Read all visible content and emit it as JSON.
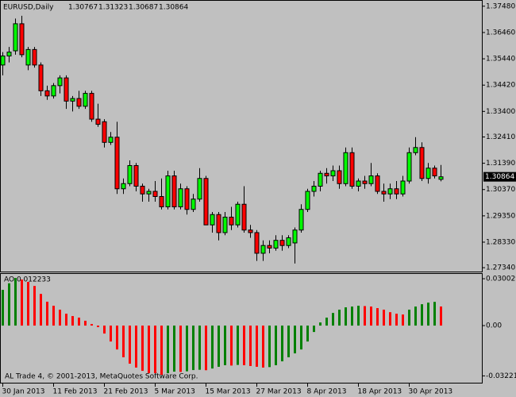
{
  "chart_data": [
    {
      "type": "candlestick",
      "title": "EURUSD,Daily",
      "categories": [
        "30 Jan 2013",
        null,
        null,
        null,
        null,
        null,
        null,
        null,
        "11 Feb 2013",
        null,
        null,
        null,
        null,
        null,
        null,
        null,
        "21 Feb 2013",
        null,
        null,
        null,
        null,
        null,
        null,
        null,
        "5 Mar 2013",
        null,
        null,
        null,
        null,
        null,
        null,
        null,
        "15 Mar 2013",
        null,
        null,
        null,
        null,
        null,
        null,
        null,
        "27 Mar 2013",
        null,
        null,
        null,
        null,
        null,
        null,
        null,
        "8 Apr 2013",
        null,
        null,
        null,
        null,
        null,
        null,
        null,
        "18 Apr 2013",
        null,
        null,
        null,
        null,
        null,
        null,
        null,
        "30 Apr 2013",
        null,
        null,
        null,
        null,
        null
      ],
      "open": [
        1.352,
        1.3555,
        1.3575,
        1.368,
        1.352,
        1.358,
        1.352,
        1.342,
        1.34,
        1.344,
        1.347,
        1.338,
        1.339,
        1.336,
        1.341,
        1.331,
        1.33,
        1.322,
        1.324,
        1.304,
        1.306,
        1.313,
        1.305,
        1.302,
        1.303,
        1.301,
        1.297,
        1.309,
        1.297,
        1.304,
        1.296,
        1.3,
        1.308,
        1.29,
        1.294,
        1.287,
        1.293,
        1.29,
        1.298,
        1.288,
        1.287,
        1.279,
        1.282,
        1.281,
        1.284,
        1.282,
        1.283,
        1.288,
        1.296,
        1.303,
        1.305,
        1.31,
        1.309,
        1.311,
        1.306,
        1.318,
        1.305,
        1.307,
        1.306,
        1.309,
        1.303,
        1.302,
        1.304,
        1.302,
        1.307,
        1.318,
        1.32,
        1.308,
        1.312,
        1.30767
      ],
      "high": [
        1.357,
        1.359,
        1.37,
        1.3711,
        1.359,
        1.359,
        1.353,
        1.344,
        1.345,
        1.348,
        1.348,
        1.34,
        1.342,
        1.342,
        1.342,
        1.337,
        1.331,
        1.326,
        1.33,
        1.308,
        1.315,
        1.314,
        1.306,
        1.304,
        1.307,
        1.308,
        1.311,
        1.311,
        1.306,
        1.305,
        1.302,
        1.312,
        1.309,
        1.295,
        1.295,
        1.295,
        1.297,
        1.299,
        1.305,
        1.29,
        1.288,
        1.284,
        1.284,
        1.286,
        1.286,
        1.286,
        1.289,
        1.298,
        1.304,
        1.307,
        1.311,
        1.312,
        1.313,
        1.313,
        1.32,
        1.32,
        1.308,
        1.309,
        1.314,
        1.31,
        1.306,
        1.306,
        1.307,
        1.309,
        1.32,
        1.324,
        1.322,
        1.314,
        1.313,
        1.31323
      ],
      "low": [
        1.348,
        1.353,
        1.356,
        1.355,
        1.35,
        1.351,
        1.34,
        1.3385,
        1.339,
        1.341,
        1.335,
        1.334,
        1.335,
        1.335,
        1.33,
        1.328,
        1.32,
        1.321,
        1.302,
        1.302,
        1.305,
        1.303,
        1.299,
        1.299,
        1.299,
        1.296,
        1.296,
        1.296,
        1.296,
        1.294,
        1.295,
        1.299,
        1.29,
        1.287,
        1.284,
        1.286,
        1.288,
        1.289,
        1.287,
        1.285,
        1.276,
        1.276,
        1.279,
        1.28,
        1.28,
        1.281,
        1.275,
        1.287,
        1.295,
        1.301,
        1.303,
        1.306,
        1.307,
        1.304,
        1.305,
        1.304,
        1.303,
        1.304,
        1.305,
        1.302,
        1.299,
        1.3,
        1.3,
        1.301,
        1.306,
        1.317,
        1.307,
        1.306,
        1.308,
        1.30687
      ],
      "close": [
        1.3555,
        1.357,
        1.368,
        1.356,
        1.358,
        1.352,
        1.342,
        1.34,
        1.344,
        1.347,
        1.338,
        1.339,
        1.336,
        1.341,
        1.331,
        1.329,
        1.322,
        1.324,
        1.304,
        1.306,
        1.313,
        1.305,
        1.302,
        1.303,
        1.301,
        1.297,
        1.309,
        1.297,
        1.304,
        1.296,
        1.3,
        1.308,
        1.29,
        1.294,
        1.287,
        1.293,
        1.29,
        1.298,
        1.288,
        1.287,
        1.279,
        1.282,
        1.281,
        1.284,
        1.282,
        1.285,
        1.288,
        1.296,
        1.303,
        1.305,
        1.31,
        1.309,
        1.311,
        1.306,
        1.318,
        1.305,
        1.307,
        1.306,
        1.309,
        1.303,
        1.302,
        1.304,
        1.302,
        1.307,
        1.318,
        1.32,
        1.308,
        1.312,
        1.309,
        1.30864
      ],
      "up_color": "#00ff00",
      "down_color": "#ff0000",
      "wick_color": "#000000",
      "ylim": [
        1.2719,
        1.3769
      ],
      "yticks": [
        {
          "value": 1.3748,
          "label": "1.37480"
        },
        {
          "value": 1.3646,
          "label": "1.36460"
        },
        {
          "value": 1.3544,
          "label": "1.35440"
        },
        {
          "value": 1.3442,
          "label": "1.34420"
        },
        {
          "value": 1.334,
          "label": "1.33400"
        },
        {
          "value": 1.3241,
          "label": "1.32410"
        },
        {
          "value": 1.3139,
          "label": "1.31390"
        },
        {
          "value": 1.3037,
          "label": "1.30370"
        },
        {
          "value": 1.2935,
          "label": "1.29350"
        },
        {
          "value": 1.2833,
          "label": "1.28330"
        },
        {
          "value": 1.2734,
          "label": "1.27340"
        }
      ]
    },
    {
      "type": "bar",
      "title": "AO 0.012233",
      "footer": "AL Trade 4, © 2001-2013, MetaQuotes Software Corp.",
      "values": [
        0.0229,
        0.0271,
        0.0305,
        0.0295,
        0.028,
        0.0254,
        0.0203,
        0.0153,
        0.0127,
        0.0102,
        0.0076,
        0.0061,
        0.0051,
        0.0031,
        0.001,
        -0.001,
        -0.0051,
        -0.0102,
        -0.0153,
        -0.0203,
        -0.0244,
        -0.0269,
        -0.029,
        -0.0305,
        -0.0305,
        -0.0315,
        -0.0305,
        -0.0295,
        -0.0297,
        -0.0293,
        -0.0285,
        -0.0283,
        -0.0286,
        -0.0275,
        -0.0264,
        -0.0254,
        -0.0256,
        -0.0252,
        -0.0254,
        -0.0259,
        -0.0264,
        -0.0269,
        -0.0266,
        -0.0254,
        -0.0229,
        -0.0203,
        -0.0178,
        -0.0153,
        -0.0102,
        -0.0041,
        0.002,
        0.0051,
        0.0081,
        0.0102,
        0.0117,
        0.0122,
        0.0127,
        0.0125,
        0.0122,
        0.0112,
        0.0102,
        0.0086,
        0.0076,
        0.0071,
        0.0102,
        0.0122,
        0.0137,
        0.0147,
        0.0152,
        0.012233
      ],
      "up_color": "#008000",
      "down_color": "#ff0000",
      "ylim": [
        -0.0366,
        0.0331
      ],
      "yticks": [
        0.030029,
        {
          "value": 0,
          "label": "0.00"
        },
        -0.032215
      ]
    }
  ]
}
